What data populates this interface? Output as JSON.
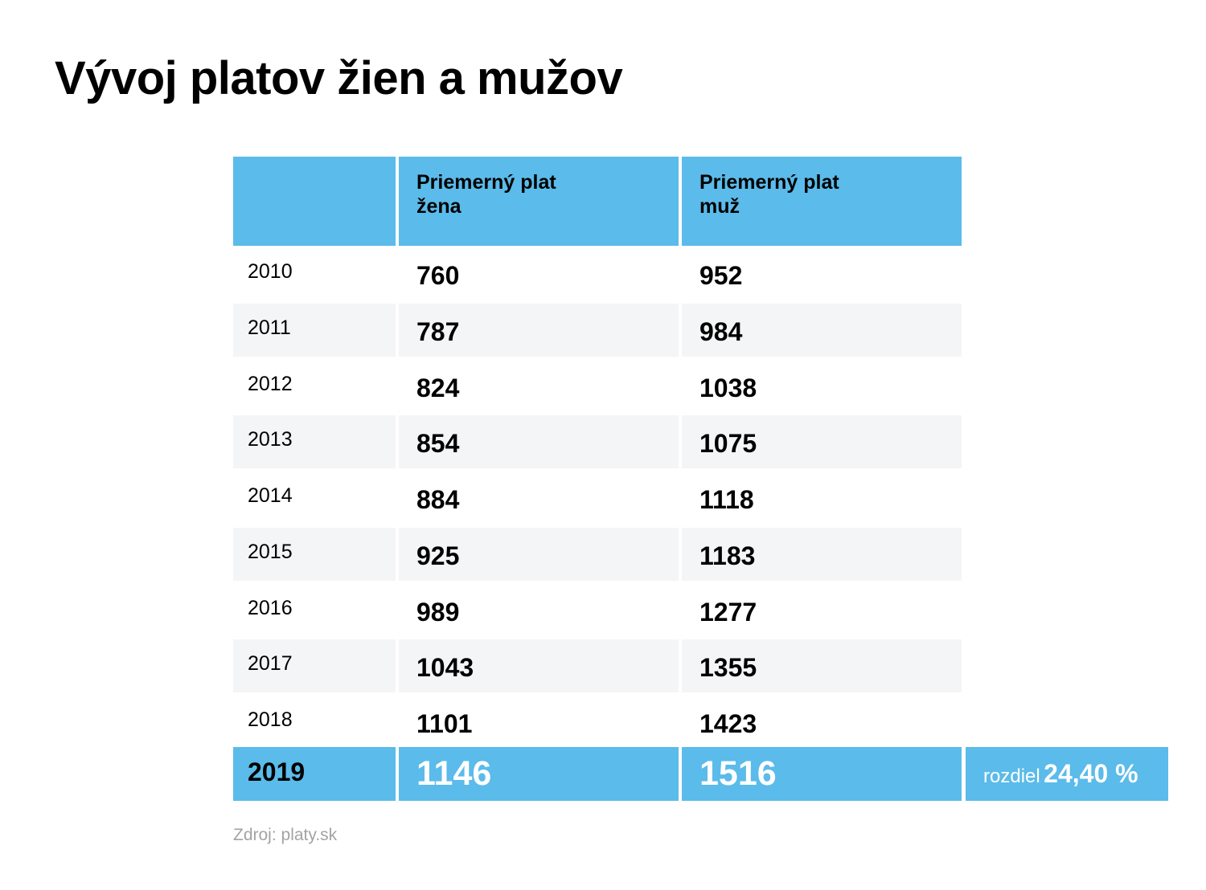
{
  "title": "Vývoj platov žien a mužov",
  "source": "Zdroj: platy.sk",
  "colors": {
    "accent": "#5bbbea",
    "stripe": "#f4f5f6",
    "source_text": "#a3a3a3"
  },
  "chart_data": {
    "type": "table",
    "title": "Vývoj platov žien a mužov",
    "columns": [
      "",
      "Priemerný plat žena",
      "Priemerný plat muž"
    ],
    "header": {
      "col1_line1": "Priemerný plat",
      "col1_line2": "žena",
      "col2_line1": "Priemerný plat",
      "col2_line2": "muž"
    },
    "rows": [
      {
        "year": "2010",
        "zena": "760",
        "muz": "952"
      },
      {
        "year": "2011",
        "zena": "787",
        "muz": "984"
      },
      {
        "year": "2012",
        "zena": "824",
        "muz": "1038"
      },
      {
        "year": "2013",
        "zena": "854",
        "muz": "1075"
      },
      {
        "year": "2014",
        "zena": "884",
        "muz": "1118"
      },
      {
        "year": "2015",
        "zena": "925",
        "muz": "1183"
      },
      {
        "year": "2016",
        "zena": "989",
        "muz": "1277"
      },
      {
        "year": "2017",
        "zena": "1043",
        "muz": "1355"
      },
      {
        "year": "2018",
        "zena": "1101",
        "muz": "1423"
      }
    ],
    "highlight": {
      "year": "2019",
      "zena": "1146",
      "muz": "1516",
      "difference_label": "rozdiel",
      "difference_value": "24,40 %"
    }
  }
}
